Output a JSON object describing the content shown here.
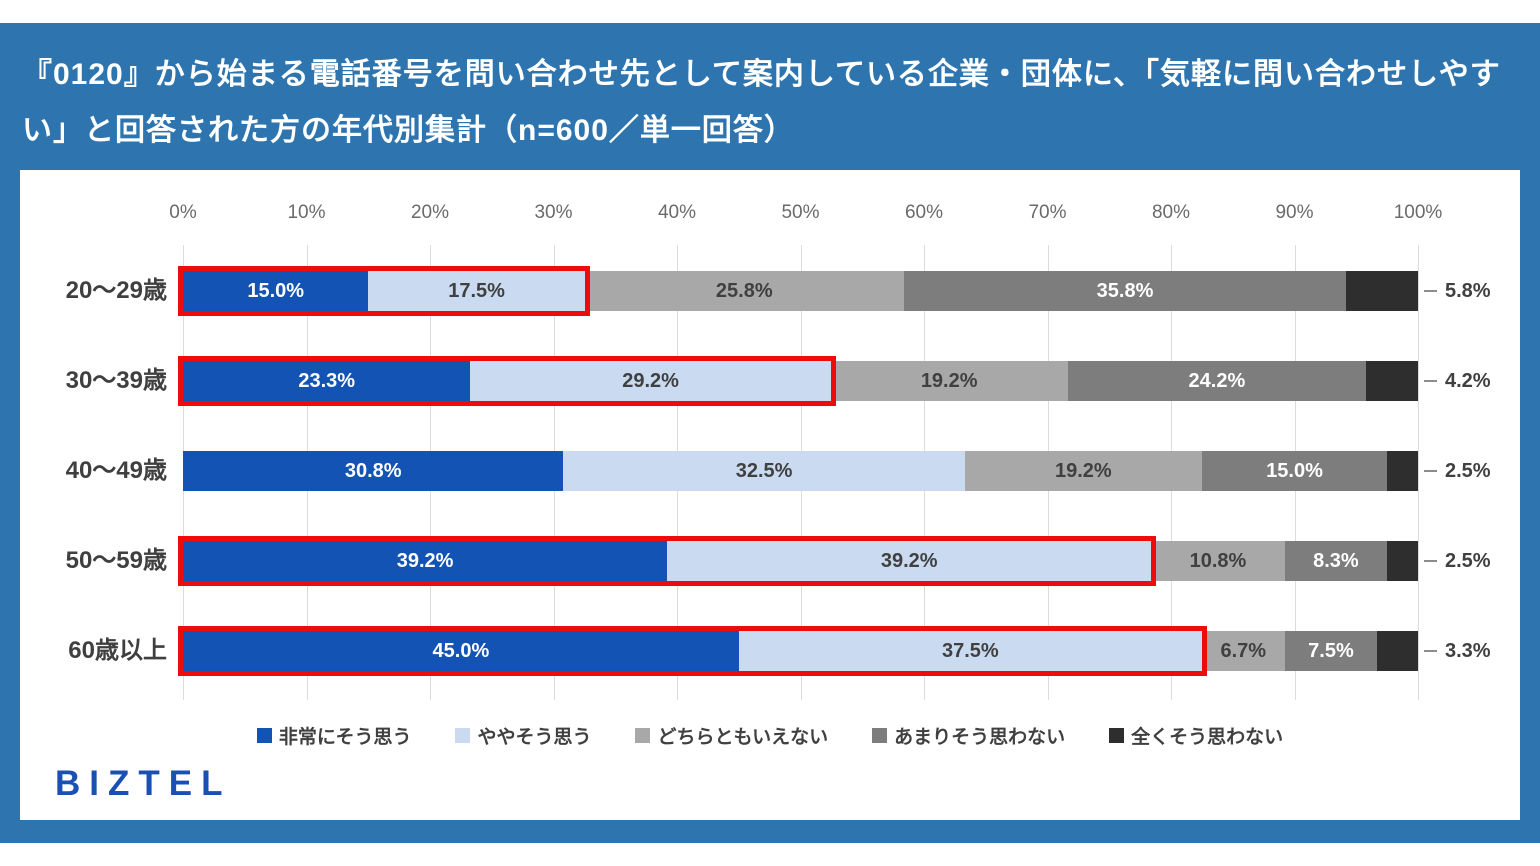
{
  "title": "『0120』から始まる電話番号を問い合わせ先として案内している企業・団体に、「気軽に問い合わせしやすい」と回答された方の年代別集計（n=600／単一回答）",
  "logo": "BIZTEL",
  "colors": {
    "header_bg": "#2E75AF",
    "card_bg": "#FFFFFF",
    "highlight_border": "#EE0B0B",
    "grid_line": "#DCDCDC",
    "axis_tick_text": "#6A6A6A",
    "category_text": "#3F3F3F",
    "outside_label_text": "#404040",
    "logo_blue": "#1A50B2"
  },
  "chart_data": {
    "type": "bar",
    "stacked": true,
    "orientation": "horizontal",
    "title": "『0120』から始まる電話番号を問い合わせ先として案内している企業・団体に、「気軽に問い合わせしやすい」と回答された方の年代別集計",
    "subtitle": "n=600／単一回答",
    "categories": [
      "20〜29歳",
      "30〜39歳",
      "40〜49歳",
      "50〜59歳",
      "60歳以上"
    ],
    "series": [
      {
        "name": "非常にそう思う",
        "color": "#1253B4",
        "label_color": "#FFFFFF",
        "label_inside": true,
        "values": [
          15.0,
          23.3,
          30.8,
          39.2,
          45.0
        ]
      },
      {
        "name": "ややそう思う",
        "color": "#C9DAF1",
        "label_color": "#404040",
        "label_inside": true,
        "values": [
          17.5,
          29.2,
          32.5,
          39.2,
          37.5
        ]
      },
      {
        "name": "どちらともいえない",
        "color": "#A8A8A8",
        "label_color": "#404040",
        "label_inside": true,
        "values": [
          25.8,
          19.2,
          19.2,
          10.8,
          6.7
        ]
      },
      {
        "name": "あまりそう思わない",
        "color": "#7D7D7D",
        "label_color": "#FFFFFF",
        "label_inside": true,
        "values": [
          35.8,
          24.2,
          15.0,
          8.3,
          7.5
        ]
      },
      {
        "name": "全くそう思わない",
        "color": "#2E2E2E",
        "label_color": "#404040",
        "label_inside": false,
        "values": [
          5.8,
          4.2,
          2.5,
          2.5,
          3.3
        ]
      }
    ],
    "x_ticks": [
      "0%",
      "10%",
      "20%",
      "30%",
      "40%",
      "50%",
      "60%",
      "70%",
      "80%",
      "90%",
      "100%"
    ],
    "xlim": [
      0,
      100
    ],
    "value_suffix": "%",
    "highlighted_rows": [
      0,
      1,
      3,
      4
    ],
    "highlight_note": "red box around first two segments",
    "legend_position": "bottom",
    "grid": true
  }
}
